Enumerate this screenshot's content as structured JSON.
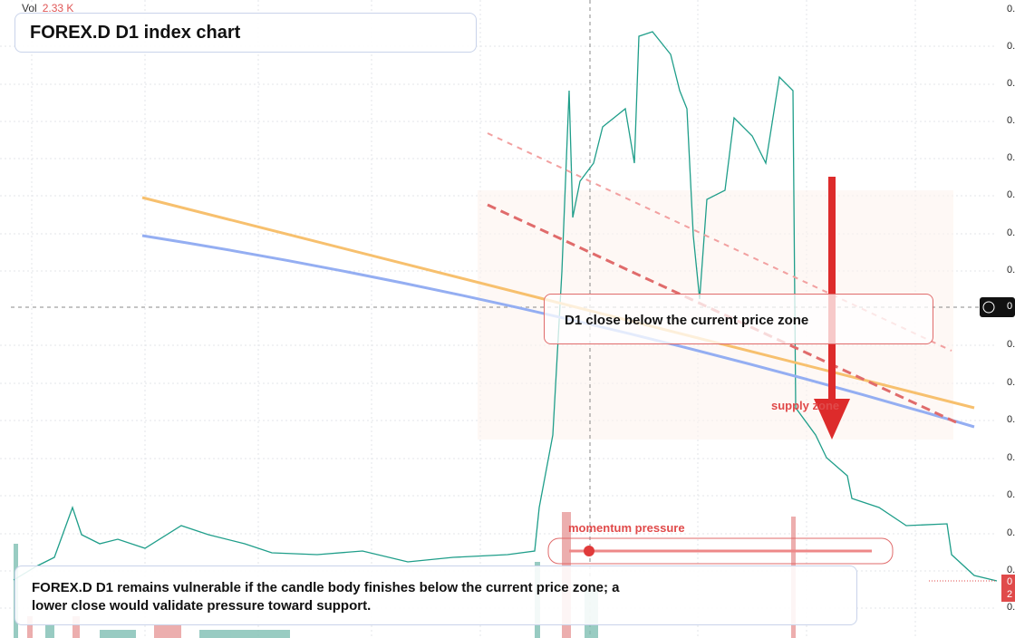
{
  "legend": {
    "label": "Vol",
    "value": "2.33 K"
  },
  "title": "FOREX.D D1 index chart",
  "annotations": {
    "zone_label": "D1 close below the current price zone",
    "supply": "supply zone",
    "momentum": "momentum pressure"
  },
  "note": "FOREX.D D1 remains vulnerable if the candle body finishes below the current price zone; a lower close would validate pressure toward support.",
  "price_axis": [
    "0.",
    "0.",
    "0.",
    "0.",
    "0.",
    "0.",
    "0.",
    "0.",
    "0.",
    "0.",
    "0.",
    "0.",
    "0.",
    "0.",
    "0.",
    "0."
  ],
  "crosshair_label": "0",
  "last_price_label": [
    "0",
    "2"
  ]
}
